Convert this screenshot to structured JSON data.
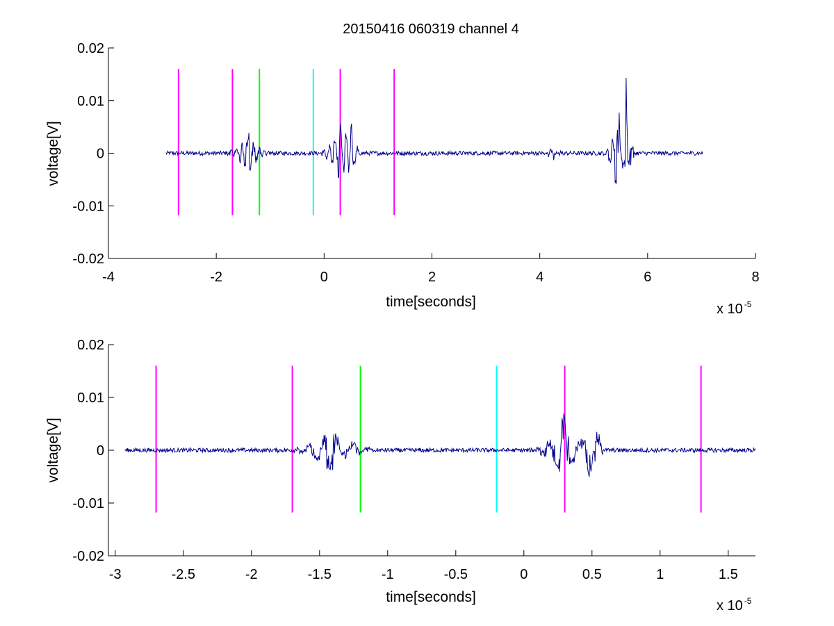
{
  "chart_data": [
    {
      "type": "line",
      "title": "20150416 060319 channel 4",
      "xlabel": "time[seconds]",
      "ylabel": "voltage[V]",
      "x_multiplier_label": "x 10",
      "x_multiplier_exponent": "-5",
      "xlim": [
        -4,
        8
      ],
      "ylim": [
        -0.02,
        0.02
      ],
      "x_ticks": [
        -4,
        -2,
        0,
        2,
        4,
        6,
        8
      ],
      "x_tick_labels": [
        "-4",
        "-2",
        "0",
        "2",
        "4",
        "6",
        "8"
      ],
      "y_ticks": [
        -0.02,
        -0.01,
        0,
        0.01,
        0.02
      ],
      "y_tick_labels": [
        "-0.02",
        "-0.01",
        "0",
        "0.01",
        "0.02"
      ],
      "grid": false,
      "signal": {
        "color": "#00008b",
        "x_range": [
          -2.93,
          7.02
        ],
        "baseline_noise": 0.0004,
        "bursts": [
          {
            "x": -1.42,
            "amplitude": 0.0045,
            "duration": 0.4
          },
          {
            "x": 0.3,
            "amplitude": 0.007,
            "duration": 0.35
          },
          {
            "x": 0.5,
            "amplitude": 0.006,
            "duration": 0.15
          },
          {
            "x": 4.25,
            "amplitude": -0.0012,
            "duration": 0.2
          },
          {
            "x": 5.45,
            "amplitude": 0.0085,
            "duration": 0.25
          },
          {
            "x": 5.6,
            "amplitude": 0.0145,
            "duration": 0.15
          }
        ]
      },
      "markers": [
        {
          "x": -2.7,
          "y_range": [
            -0.0118,
            0.016
          ],
          "color": "#ff00ff"
        },
        {
          "x": -1.7,
          "y_range": [
            -0.0118,
            0.016
          ],
          "color": "#ff00ff"
        },
        {
          "x": -1.2,
          "y_range": [
            -0.0118,
            0.016
          ],
          "color": "#00ff00"
        },
        {
          "x": -0.2,
          "y_range": [
            -0.0118,
            0.016
          ],
          "color": "#00ffff"
        },
        {
          "x": 0.3,
          "y_range": [
            -0.0118,
            0.016
          ],
          "color": "#ff00ff"
        },
        {
          "x": 1.3,
          "y_range": [
            -0.0118,
            0.016
          ],
          "color": "#ff00ff"
        }
      ]
    },
    {
      "type": "line",
      "title": "",
      "xlabel": "time[seconds]",
      "ylabel": "voltage[V]",
      "x_multiplier_label": "x 10",
      "x_multiplier_exponent": "-5",
      "xlim": [
        -3.05,
        1.7
      ],
      "ylim": [
        -0.02,
        0.02
      ],
      "x_ticks": [
        -3,
        -2.5,
        -2,
        -1.5,
        -1,
        -0.5,
        0,
        0.5,
        1,
        1.5
      ],
      "x_tick_labels": [
        "-3",
        "-2.5",
        "-2",
        "-1.5",
        "-1",
        "-0.5",
        "0",
        "0.5",
        "1",
        "1.5"
      ],
      "y_ticks": [
        -0.02,
        -0.01,
        0,
        0.01,
        0.02
      ],
      "y_tick_labels": [
        "-0.02",
        "-0.01",
        "0",
        "0.01",
        "0.02"
      ],
      "grid": false,
      "signal": {
        "color": "#00008b",
        "x_range": [
          -2.93,
          1.7
        ],
        "baseline_noise": 0.0004,
        "bursts": [
          {
            "x": -1.43,
            "amplitude": -0.0048,
            "duration": 0.25
          },
          {
            "x": -1.4,
            "amplitude": 0.002,
            "duration": 0.1
          },
          {
            "x": -1.25,
            "amplitude": 0.0015,
            "duration": 0.15
          },
          {
            "x": 0.29,
            "amplitude": 0.0075,
            "duration": 0.2
          },
          {
            "x": 0.48,
            "amplitude": -0.007,
            "duration": 0.1
          },
          {
            "x": 0.54,
            "amplitude": 0.0045,
            "duration": 0.05
          }
        ]
      },
      "markers": [
        {
          "x": -2.7,
          "y_range": [
            -0.0118,
            0.016
          ],
          "color": "#ff00ff"
        },
        {
          "x": -1.7,
          "y_range": [
            -0.0118,
            0.016
          ],
          "color": "#ff00ff"
        },
        {
          "x": -1.2,
          "y_range": [
            -0.0118,
            0.016
          ],
          "color": "#00ff00"
        },
        {
          "x": -0.2,
          "y_range": [
            -0.0118,
            0.016
          ],
          "color": "#00ffff"
        },
        {
          "x": 0.3,
          "y_range": [
            -0.0118,
            0.016
          ],
          "color": "#ff00ff"
        },
        {
          "x": 1.3,
          "y_range": [
            -0.0118,
            0.016
          ],
          "color": "#ff00ff"
        }
      ]
    }
  ]
}
